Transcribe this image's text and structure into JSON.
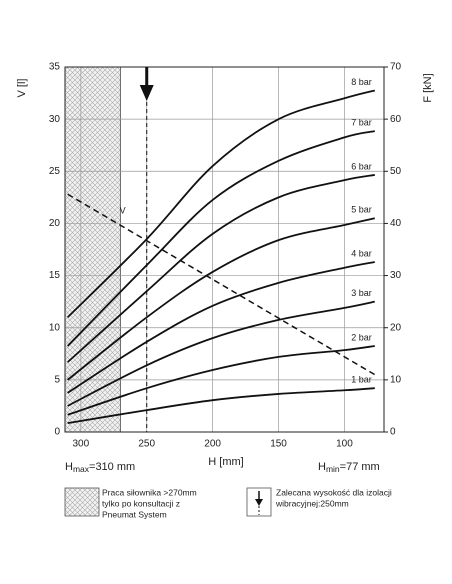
{
  "chart_data": {
    "type": "line",
    "x_label": "H [mm]",
    "y_label": "V [l]",
    "y2_label": "F [kN]",
    "xlim": [
      312,
      70
    ],
    "xticks": [
      300,
      250,
      200,
      150,
      100
    ],
    "ylim": [
      0,
      35
    ],
    "yticks": [
      0,
      5,
      10,
      15,
      20,
      25,
      30,
      35
    ],
    "y2lim": [
      0,
      70
    ],
    "y2ticks": [
      0,
      10,
      20,
      30,
      40,
      50,
      60,
      70
    ],
    "grid": true,
    "series": [
      {
        "name": "1 bar",
        "color": "#111111",
        "axis": "y2",
        "x": [
          310,
          250,
          200,
          150,
          100,
          77
        ],
        "values": [
          1.7,
          4.2,
          6.1,
          7.3,
          8,
          8.4
        ]
      },
      {
        "name": "2 bar",
        "color": "#111111",
        "axis": "y2",
        "x": [
          310,
          250,
          200,
          150,
          100,
          77
        ],
        "values": [
          3.3,
          8.4,
          11.9,
          14.4,
          15.7,
          16.5
        ]
      },
      {
        "name": "3 bar",
        "color": "#111111",
        "axis": "y2",
        "x": [
          310,
          250,
          200,
          150,
          100,
          77
        ],
        "values": [
          5,
          12.8,
          18,
          21.5,
          23.8,
          25
        ]
      },
      {
        "name": "4 bar",
        "color": "#111111",
        "axis": "y2",
        "x": [
          310,
          250,
          200,
          150,
          100,
          77
        ],
        "values": [
          7.5,
          17.3,
          24.2,
          28.6,
          31.5,
          32.6
        ]
      },
      {
        "name": "5 bar",
        "color": "#111111",
        "axis": "y2",
        "x": [
          310,
          250,
          200,
          150,
          100,
          77
        ],
        "values": [
          10,
          22,
          30.7,
          36.8,
          39.7,
          41
        ]
      },
      {
        "name": "6 bar",
        "color": "#111111",
        "axis": "y2",
        "x": [
          310,
          250,
          200,
          150,
          100,
          77
        ],
        "values": [
          13.4,
          27,
          38,
          45,
          48.3,
          49.3
        ]
      },
      {
        "name": "7 bar",
        "color": "#111111",
        "axis": "y2",
        "x": [
          310,
          250,
          200,
          150,
          100,
          77
        ],
        "values": [
          16.5,
          32,
          44.5,
          52,
          56.5,
          57.7
        ]
      },
      {
        "name": "8 bar",
        "color": "#111111",
        "axis": "y2",
        "x": [
          310,
          250,
          200,
          150,
          100,
          77
        ],
        "values": [
          22,
          37,
          51,
          60,
          64,
          65.5
        ]
      },
      {
        "name": "V",
        "color": "#111111",
        "axis": "y",
        "dashed": true,
        "x": [
          310,
          77
        ],
        "values": [
          22.8,
          5.5
        ]
      }
    ],
    "restricted_range": [
      312,
      270
    ],
    "recommended_height": 250,
    "h_max": {
      "symbol": "H",
      "sub": "max",
      "text": "=310 mm"
    },
    "h_min": {
      "symbol": "H",
      "sub": "min",
      "text": "=77 mm"
    },
    "legend_restricted": [
      "Praca siłownika >270mm",
      "tylko po konsultacji z",
      "Pneumat System"
    ],
    "legend_recommended": [
      "Zalecana wysokość dla izolacji",
      "wibracyjnej:250mm"
    ]
  }
}
